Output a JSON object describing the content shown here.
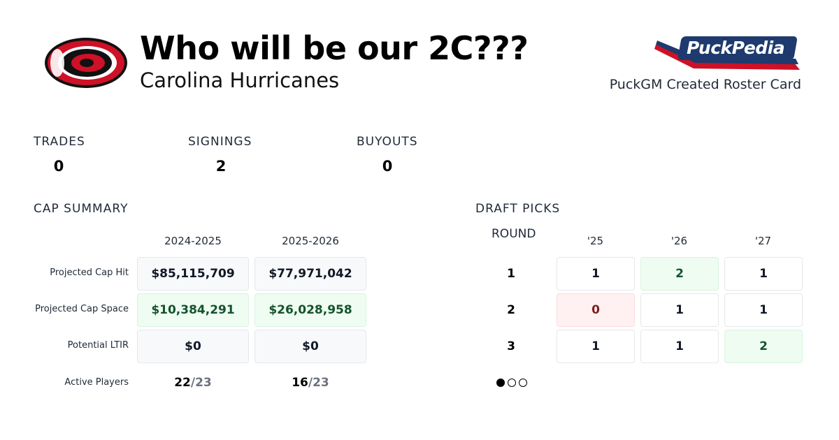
{
  "header": {
    "title": "Who will be our 2C???",
    "team": "Carolina Hurricanes",
    "brand": "PuckPedia",
    "card_label": "PuckGM Created Roster Card"
  },
  "stats": [
    {
      "label": "TRADES",
      "value": "0"
    },
    {
      "label": "SIGNINGS",
      "value": "2"
    },
    {
      "label": "BUYOUTS",
      "value": "0"
    }
  ],
  "cap_summary": {
    "title": "CAP SUMMARY",
    "seasons": [
      "2024-2025",
      "2025-2026"
    ],
    "rows": [
      {
        "label": "Projected Cap Hit",
        "values": [
          "$85,115,709",
          "$77,971,042"
        ],
        "status": "neutral"
      },
      {
        "label": "Projected Cap Space",
        "values": [
          "$10,384,291",
          "$26,028,958"
        ],
        "status": "positive"
      },
      {
        "label": "Potential LTIR",
        "values": [
          "$0",
          "$0"
        ],
        "status": "neutral"
      }
    ],
    "active_players": {
      "label": "Active Players",
      "values": [
        {
          "count": "22",
          "max": "/23"
        },
        {
          "count": "16",
          "max": "/23"
        }
      ]
    }
  },
  "draft_picks": {
    "title": "DRAFT PICKS",
    "round_label": "ROUND",
    "years": [
      "'25",
      "'26",
      "'27"
    ],
    "rounds": [
      {
        "round": "1",
        "picks": [
          "1",
          "2",
          "1"
        ]
      },
      {
        "round": "2",
        "picks": [
          "0",
          "1",
          "1"
        ]
      },
      {
        "round": "3",
        "picks": [
          "1",
          "1",
          "2"
        ]
      }
    ],
    "page": 1,
    "pages": 3
  },
  "colors": {
    "positive_bg": "#effcf2",
    "positive_text": "#14532d",
    "negative_bg": "#fff1f1",
    "negative_text": "#7f1d1d",
    "brand_red": "#ce1126"
  }
}
